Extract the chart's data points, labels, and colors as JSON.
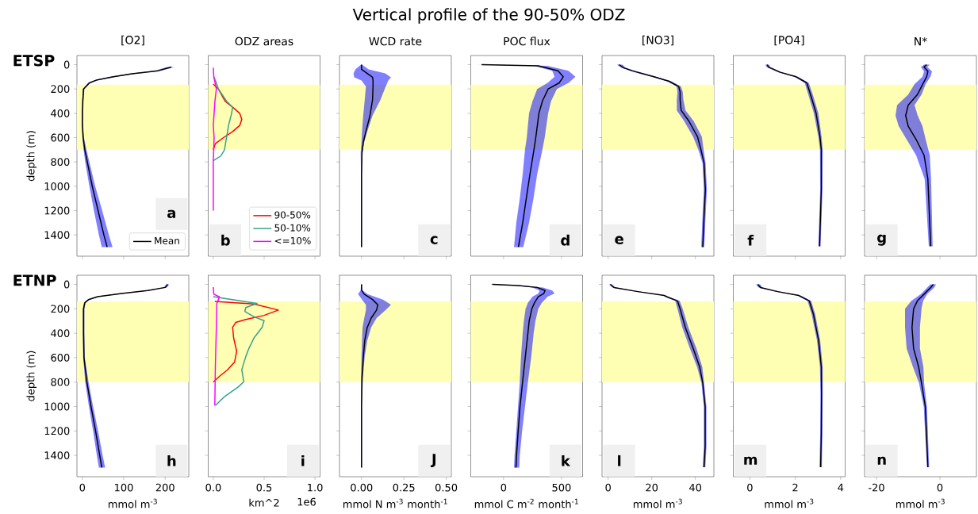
{
  "chart_data": [
    {
      "type": "other",
      "title": "Vertical profile of the 90-50% ODZ"
    },
    {
      "type": "line",
      "orientation": "horizontal",
      "title": "[O2]",
      "ylabel": "depth (m)",
      "xlim": [
        -13,
        257
      ],
      "ylim": [
        1575,
        -75
      ],
      "xticks": [
        0,
        100,
        200
      ],
      "yticks": [
        0,
        200,
        400,
        600,
        800,
        1000,
        1200,
        1400
      ],
      "tick_labels": "y",
      "legend": "bottom right",
      "bands": [
        {
          "axis": "y",
          "from": 165,
          "to": 700,
          "color": "#ffffb3"
        }
      ],
      "annotations": [
        "ETSP",
        "a"
      ],
      "series": [
        {
          "name": "Mean",
          "color": "#000000",
          "x": [
            20,
            50,
            75,
            100,
            125,
            150,
            200,
            300,
            400,
            500,
            600,
            700,
            800,
            1000,
            1200,
            1400,
            1500
          ],
          "values": [
            215,
            183,
            120,
            75,
            36,
            17,
            3,
            1,
            0,
            0,
            2,
            6,
            12,
            24,
            38,
            52,
            60
          ],
          "lower": [
            205,
            175,
            112,
            68,
            32,
            14,
            1,
            0,
            0,
            0,
            0,
            3,
            7,
            17,
            28,
            40,
            47
          ],
          "upper": [
            222,
            190,
            128,
            82,
            40,
            20,
            5,
            3,
            2,
            2,
            4,
            10,
            17,
            31,
            48,
            64,
            73
          ]
        }
      ]
    },
    {
      "type": "line",
      "orientation": "horizontal",
      "title": "ODZ areas",
      "xlim": [
        -0.05,
        1.05
      ],
      "ylim": [
        1575,
        -75
      ],
      "xticks": [
        0,
        0.5,
        1
      ],
      "yticks": [
        0,
        200,
        400,
        600,
        800,
        1000,
        1200,
        1400
      ],
      "tick_labels": false,
      "legend": "bottom right",
      "bands": [
        {
          "axis": "y",
          "from": 165,
          "to": 700,
          "color": "#ffffb3"
        }
      ],
      "annotations": [
        "b"
      ],
      "series": [
        {
          "name": "90-50%",
          "color": "#ff0000",
          "x": [
            160,
            200,
            300,
            350,
            400,
            450,
            500,
            550,
            600,
            650,
            700
          ],
          "values": [
            0,
            0.05,
            0.115,
            0.19,
            0.26,
            0.28,
            0.26,
            0.19,
            0.1,
            0.02,
            0
          ]
        },
        {
          "name": "50-10%",
          "color": "#33a08c",
          "x": [
            100,
            150,
            200,
            300,
            350,
            400,
            500,
            600,
            700,
            750,
            790
          ],
          "values": [
            0.005,
            0.03,
            0.05,
            0.13,
            0.19,
            0.18,
            0.15,
            0.13,
            0.11,
            0.075,
            0
          ]
        },
        {
          "name": "<=10%",
          "color": "#ff00ff",
          "x": [
            25,
            100,
            200,
            300,
            500,
            600,
            800,
            1000,
            1200
          ],
          "values": [
            0,
            0.005,
            0.03,
            0.016,
            0,
            0.008,
            0,
            0,
            0
          ]
        }
      ]
    },
    {
      "type": "line",
      "orientation": "horizontal",
      "title": "WCD rate",
      "xlim": [
        -0.13,
        0.53
      ],
      "ylim": [
        1575,
        -75
      ],
      "xticks": [
        0,
        0.25,
        0.5
      ],
      "yticks": [
        0,
        200,
        400,
        600,
        800,
        1000,
        1200,
        1400
      ],
      "tick_labels": false,
      "bands": [
        {
          "axis": "y",
          "from": 165,
          "to": 700,
          "color": "#ffffb3"
        }
      ],
      "annotations": [
        "c"
      ],
      "series": [
        {
          "color": "#000000",
          "x": [
            0,
            39,
            72,
            104,
            130,
            180,
            289,
            419,
            549,
            636,
            723,
            900,
            1200,
            1500
          ],
          "values": [
            0,
            0,
            0.034,
            0.065,
            0.068,
            0.068,
            0.065,
            0.05,
            0.026,
            0.011,
            0.003,
            0,
            0,
            0
          ],
          "lower": [
            -0.003,
            -0.036,
            -0.047,
            -0.043,
            0,
            0.026,
            0.019,
            0.01,
            0.003,
            0,
            -0.005,
            -0.003,
            -0.003,
            -0.003
          ],
          "upper": [
            0.003,
            0.042,
            0.14,
            0.174,
            0.158,
            0.143,
            0.112,
            0.065,
            0.034,
            0.016,
            0.006,
            0.003,
            0.003,
            0.003
          ]
        }
      ]
    },
    {
      "type": "line",
      "orientation": "horizontal",
      "title": "POC flux",
      "xlim": [
        -283,
        682
      ],
      "ylim": [
        1575,
        -75
      ],
      "xticks": [
        0,
        500
      ],
      "yticks": [
        0,
        200,
        400,
        600,
        800,
        1000,
        1200,
        1400
      ],
      "tick_labels": false,
      "bands": [
        {
          "axis": "y",
          "from": 165,
          "to": 700,
          "color": "#ffffb3"
        }
      ],
      "annotations": [
        "d"
      ],
      "series": [
        {
          "color": "#000000",
          "x": [
            0,
            10,
            50,
            100,
            150,
            200,
            300,
            400,
            600,
            700,
            900,
            1100,
            1300,
            1500
          ],
          "values": [
            -190,
            300,
            470,
            515,
            480,
            385,
            335,
            305,
            278,
            262,
            228,
            196,
            165,
            128
          ],
          "lower": [
            -235,
            260,
            420,
            440,
            380,
            290,
            250,
            220,
            200,
            185,
            165,
            140,
            110,
            90
          ],
          "upper": [
            -150,
            380,
            560,
            620,
            560,
            460,
            410,
            385,
            355,
            335,
            290,
            258,
            220,
            170
          ]
        }
      ]
    },
    {
      "type": "line",
      "orientation": "horizontal",
      "title": "[NO3]",
      "xlim": [
        -2.8,
        48.5
      ],
      "ylim": [
        1575,
        -75
      ],
      "xticks": [
        0,
        20,
        40
      ],
      "yticks": [
        0,
        200,
        400,
        600,
        800,
        1000,
        1200,
        1400
      ],
      "tick_labels": false,
      "bands": [
        {
          "axis": "y",
          "from": 165,
          "to": 700,
          "color": "#ffffb3"
        }
      ],
      "annotations": [
        "e"
      ],
      "series": [
        {
          "color": "#000000",
          "x": [
            0,
            25,
            50,
            75,
            100,
            137,
            180,
            224,
            289,
            376,
            463,
            593,
            701,
            810,
            1027,
            1244,
            1500
          ],
          "values": [
            5,
            7,
            11,
            16,
            21,
            28,
            32.4,
            33,
            33,
            33.5,
            37,
            41,
            42.6,
            44,
            44.6,
            44,
            43.4
          ],
          "lower": [
            4,
            6,
            10,
            14.5,
            20,
            27,
            31.4,
            31.8,
            31.5,
            31.5,
            34.8,
            39,
            41.4,
            43.3,
            43.9,
            43.3,
            42.7
          ],
          "upper": [
            6.5,
            8,
            12,
            17,
            22,
            29,
            33.4,
            34.2,
            34.5,
            35.5,
            39.2,
            43,
            43.8,
            44.7,
            45.3,
            44.7,
            44.1
          ]
        }
      ]
    },
    {
      "type": "line",
      "orientation": "horizontal",
      "title": "[PO4]",
      "xlim": [
        -0.73,
        4.2
      ],
      "ylim": [
        1575,
        -75
      ],
      "xticks": [
        0,
        2,
        4
      ],
      "yticks": [
        0,
        200,
        400,
        600,
        800,
        1000,
        1200,
        1400
      ],
      "tick_labels": false,
      "bands": [
        {
          "axis": "y",
          "from": 165,
          "to": 700,
          "color": "#ffffb3"
        }
      ],
      "annotations": [
        "f"
      ],
      "series": [
        {
          "color": "#000000",
          "x": [
            0,
            20,
            63,
            100,
            150,
            250,
            400,
            593,
            700,
            1027,
            1493
          ],
          "values": [
            0.76,
            0.82,
            1.34,
            2.04,
            2.51,
            2.68,
            2.92,
            3.09,
            3.15,
            3.15,
            3.07
          ],
          "lower": [
            0.68,
            0.74,
            1.26,
            1.96,
            2.42,
            2.58,
            2.82,
            3.02,
            3.09,
            3.1,
            3.02
          ],
          "upper": [
            0.86,
            0.9,
            1.42,
            2.12,
            2.6,
            2.78,
            3.02,
            3.16,
            3.21,
            3.2,
            3.12
          ]
        }
      ]
    },
    {
      "type": "line",
      "orientation": "horizontal",
      "title": "N*",
      "xlim": [
        -23.75,
        11.5
      ],
      "ylim": [
        1575,
        -75
      ],
      "xticks": [
        -20,
        0
      ],
      "yticks": [
        0,
        200,
        400,
        600,
        800,
        1000,
        1200,
        1400
      ],
      "tick_labels": false,
      "bands": [
        {
          "axis": "y",
          "from": 165,
          "to": 700,
          "color": "#ffffb3"
        }
      ],
      "annotations": [
        "g"
      ],
      "series": [
        {
          "color": "#000000",
          "x": [
            0,
            20,
            56,
            100,
            159,
            246,
            333,
            419,
            506,
            615,
            745,
            940,
            1493
          ],
          "values": [
            -4.2,
            -5,
            -3.8,
            -4.2,
            -5.4,
            -7.1,
            -10,
            -10.8,
            -10,
            -7.5,
            -5,
            -3.8,
            -2.9
          ],
          "lower": [
            -5,
            -6,
            -5,
            -5.5,
            -8,
            -10,
            -13.5,
            -14,
            -13,
            -10.5,
            -7.5,
            -4.8,
            -3.5
          ],
          "upper": [
            -3.2,
            -4,
            -2.5,
            -3,
            -4.5,
            -5.8,
            -8,
            -7,
            -5.5,
            -4.5,
            -3.2,
            -2.8,
            -2.3
          ]
        }
      ]
    },
    {
      "type": "line",
      "orientation": "horizontal",
      "xlabel": "mmol m$^{-3}$",
      "ylabel": "depth (m)",
      "xlim": [
        -13,
        257
      ],
      "ylim": [
        1575,
        -75
      ],
      "xticks": [
        0,
        100,
        200
      ],
      "yticks": [
        0,
        200,
        400,
        600,
        800,
        1000,
        1200,
        1400
      ],
      "bands": [
        {
          "axis": "y",
          "from": 140,
          "to": 800,
          "color": "#ffffb3"
        }
      ],
      "annotations": [
        "ETNP",
        "h"
      ],
      "series": [
        {
          "color": "#000000",
          "x": [
            0,
            25,
            50,
            75,
            100,
            125,
            150,
            200,
            400,
            600,
            800,
            1000,
            1200,
            1400,
            1500
          ],
          "values": [
            206,
            200,
            158,
            95,
            37,
            15,
            6,
            3,
            3,
            4,
            11,
            21,
            32,
            42,
            47
          ],
          "lower": [
            203,
            196,
            153,
            90,
            33,
            12,
            4,
            1,
            1,
            2,
            7,
            16,
            26,
            35,
            40
          ],
          "upper": [
            210,
            204,
            163,
            100,
            41,
            18,
            8,
            5,
            5,
            6,
            15,
            26,
            38,
            49,
            55
          ]
        }
      ]
    },
    {
      "type": "line",
      "orientation": "horizontal",
      "xlabel": "km^2",
      "xlim": [
        -0.05,
        1.05
      ],
      "ylim": [
        1575,
        -75
      ],
      "xticks": [
        {
          "value": 0,
          "label": "0.0"
        },
        0.5,
        {
          "value": 1,
          "label": "1.0"
        }
      ],
      "yticks": [
        0,
        200,
        400,
        600,
        800,
        1000,
        1200,
        1400
      ],
      "tick_labels": "x",
      "bands": [
        {
          "axis": "y",
          "from": 140,
          "to": 800,
          "color": "#ffffb3"
        }
      ],
      "annotations": [
        "1e6",
        "i"
      ],
      "series": [
        {
          "color": "#ff0000",
          "x": [
            140,
            160,
            210,
            254,
            287,
            312,
            352,
            438,
            547,
            634,
            700,
            753,
            800
          ],
          "values": [
            0.015,
            0.4,
            0.64,
            0.5,
            0.32,
            0.22,
            0.19,
            0.2,
            0.23,
            0.21,
            0.14,
            0.06,
            0
          ]
        },
        {
          "color": "#33a08c",
          "x": [
            100,
            108,
            156,
            190,
            221,
            265,
            297,
            352,
            438,
            525,
            590,
            699,
            797,
            840,
            916,
            992
          ],
          "values": [
            0,
            0.06,
            0.43,
            0.32,
            0.31,
            0.4,
            0.5,
            0.48,
            0.4,
            0.35,
            0.32,
            0.28,
            0.3,
            0.245,
            0.115,
            0.02
          ]
        },
        {
          "color": "#ff00ff",
          "x": [
            22,
            80,
            102,
            124,
            156,
            352,
            677,
            992
          ],
          "values": [
            0,
            0.005,
            0.06,
            0.05,
            0.035,
            0.03,
            0.02,
            0.015
          ]
        }
      ]
    },
    {
      "type": "line",
      "orientation": "horizontal",
      "xlabel": "mmol N m$^{-3}$ month$^{-1}$",
      "xlim": [
        -0.13,
        0.53
      ],
      "ylim": [
        1575,
        -75
      ],
      "xticks": [
        {
          "value": 0,
          "label": "0.00"
        },
        0.25,
        {
          "value": 0.5,
          "label": "0.50"
        }
      ],
      "yticks": [
        0,
        200,
        400,
        600,
        800,
        1000,
        1200,
        1400
      ],
      "tick_labels": "x",
      "bands": [
        {
          "axis": "y",
          "from": 140,
          "to": 800,
          "color": "#ffffb3"
        }
      ],
      "annotations": [
        "J"
      ],
      "series": [
        {
          "color": "#000000",
          "x": [
            0,
            48,
            80,
            124,
            167,
            210,
            276,
            352,
            460,
            590,
            764,
            1000,
            1500
          ],
          "values": [
            0,
            0,
            0.016,
            0.065,
            0.096,
            0.089,
            0.057,
            0.034,
            0.019,
            0.011,
            0.003,
            0,
            0
          ],
          "lower": [
            -0.003,
            -0.005,
            -0.02,
            0.003,
            0.026,
            0.026,
            0.016,
            0.006,
            0.003,
            0,
            -0.003,
            -0.003,
            -0.003
          ],
          "upper": [
            0.003,
            0.006,
            0.034,
            0.127,
            0.174,
            0.143,
            0.089,
            0.057,
            0.034,
            0.019,
            0.008,
            0.003,
            0.003
          ]
        }
      ]
    },
    {
      "type": "line",
      "orientation": "horizontal",
      "xlabel": "mmol C m$^{-2}$ month$^{-1}$",
      "xlim": [
        -283,
        682
      ],
      "ylim": [
        1575,
        -75
      ],
      "xticks": [
        0,
        500
      ],
      "yticks": [
        0,
        200,
        400,
        600,
        800,
        1000,
        1200,
        1400
      ],
      "tick_labels": "x",
      "bands": [
        {
          "axis": "y",
          "from": 140,
          "to": 800,
          "color": "#ffffb3"
        }
      ],
      "annotations": [
        "k"
      ],
      "series": [
        {
          "color": "#000000",
          "x": [
            0,
            10,
            25,
            50,
            75,
            100,
            150,
            200,
            300,
            400,
            600,
            800,
            1000,
            1200,
            1400,
            1500
          ],
          "values": [
            -98,
            130,
            290,
            358,
            347,
            301,
            267,
            244,
            221,
            210,
            187,
            164,
            142,
            126,
            112,
            107
          ],
          "lower": [
            -130,
            100,
            250,
            310,
            300,
            250,
            210,
            190,
            175,
            165,
            150,
            140,
            125,
            110,
            95,
            90
          ],
          "upper": [
            -80,
            170,
            340,
            420,
            440,
            380,
            330,
            300,
            275,
            260,
            238,
            210,
            185,
            160,
            140,
            135
          ]
        }
      ]
    },
    {
      "type": "line",
      "orientation": "horizontal",
      "xlabel": "mmol m$^{-3}$",
      "xlim": [
        -2.8,
        48.5
      ],
      "ylim": [
        1575,
        -75
      ],
      "xticks": [
        0,
        20,
        40
      ],
      "yticks": [
        0,
        200,
        400,
        600,
        800,
        1000,
        1200,
        1400
      ],
      "tick_labels": "x",
      "bands": [
        {
          "axis": "y",
          "from": 140,
          "to": 800,
          "color": "#ffffb3"
        }
      ],
      "annotations": [
        "l"
      ],
      "series": [
        {
          "color": "#000000",
          "x": [
            0,
            26,
            59,
            91,
            102,
            135,
            200,
            352,
            525,
            677,
            807,
            1002,
            1327,
            1497
          ],
          "values": [
            1,
            2.7,
            13.6,
            25.8,
            27,
            31.8,
            33,
            35.4,
            39,
            42,
            43.4,
            44.5,
            44.5,
            44
          ],
          "lower": [
            0.3,
            2,
            12.9,
            25,
            26.2,
            30.8,
            31.8,
            34,
            37.5,
            40.8,
            42.8,
            43.9,
            43.9,
            43.4
          ],
          "upper": [
            1.8,
            3.4,
            14.3,
            26.6,
            27.8,
            32.8,
            34.2,
            36.8,
            40.5,
            43.2,
            44,
            45.1,
            45.1,
            44.6
          ]
        }
      ]
    },
    {
      "type": "line",
      "orientation": "horizontal",
      "xlabel": "mmol m$^{-3}$",
      "xlim": [
        -0.73,
        4.2
      ],
      "ylim": [
        1575,
        -75
      ],
      "xticks": [
        0,
        2,
        4
      ],
      "yticks": [
        0,
        200,
        400,
        600,
        800,
        1000,
        1200,
        1400
      ],
      "tick_labels": "x",
      "bands": [
        {
          "axis": "y",
          "from": 140,
          "to": 800,
          "color": "#ffffb3"
        }
      ],
      "annotations": [
        "m"
      ],
      "series": [
        {
          "color": "#000000",
          "x": [
            0,
            26,
            59,
            91,
            135,
            243,
            460,
            677,
            894,
            1219,
            1497
          ],
          "values": [
            0.35,
            0.47,
            1.22,
            2.16,
            2.62,
            2.8,
            3.03,
            3.15,
            3.16,
            3.15,
            3.12
          ],
          "lower": [
            0.27,
            0.39,
            1.14,
            2.08,
            2.54,
            2.72,
            2.96,
            3.09,
            3.11,
            3.1,
            3.07
          ],
          "upper": [
            0.45,
            0.55,
            1.3,
            2.24,
            2.7,
            2.88,
            3.1,
            3.21,
            3.21,
            3.2,
            3.17
          ]
        }
      ]
    },
    {
      "type": "line",
      "orientation": "horizontal",
      "xlabel": "mmol m$^{-3}$",
      "xlim": [
        -23.75,
        11.5
      ],
      "ylim": [
        1575,
        -75
      ],
      "xticks": [
        {
          "value": -20,
          "label": "-20"
        },
        0
      ],
      "yticks": [
        0,
        200,
        400,
        600,
        800,
        1000,
        1200,
        1400
      ],
      "tick_labels": "x",
      "bands": [
        {
          "axis": "y",
          "from": 140,
          "to": 800,
          "color": "#ffffb3"
        }
      ],
      "annotations": [
        "n"
      ],
      "series": [
        {
          "color": "#000000",
          "x": [
            0,
            26,
            80,
            135,
            200,
            352,
            525,
            677,
            807,
            1002,
            1497
          ],
          "values": [
            -2.1,
            -2.9,
            -5,
            -7.1,
            -8.3,
            -8.8,
            -8.3,
            -6.7,
            -5.8,
            -4.6,
            -3.8
          ],
          "lower": [
            -3,
            -4,
            -6,
            -9,
            -11,
            -11,
            -10.5,
            -8.5,
            -6.6,
            -5.1,
            -4.1
          ],
          "upper": [
            -1.2,
            -1.8,
            -4,
            -5.3,
            -5.8,
            -6.3,
            -6.3,
            -5.2,
            -5,
            -4.1,
            -3.4
          ]
        }
      ]
    }
  ]
}
